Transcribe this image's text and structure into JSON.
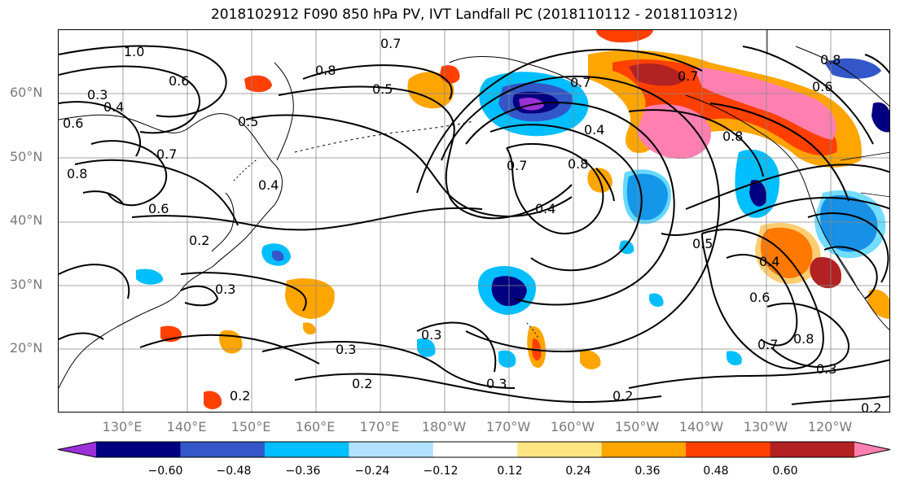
{
  "title": "2018102912 F090 850 hPa PV, IVT Landfall PC (2018110112 - 2018110312)",
  "lat_labels": [
    "60°N",
    "50°N",
    "40°N",
    "30°N",
    "20°N"
  ],
  "lon_labels": [
    "130°E",
    "140°E",
    "150°E",
    "160°E",
    "170°E",
    "180°W",
    "170°W",
    "160°W",
    "150°W",
    "140°W",
    "130°W",
    "120°W"
  ],
  "colorbar": {
    "ticks": [
      "−0.60",
      "−0.48",
      "−0.36",
      "−0.24",
      "−0.12",
      "0.12",
      "0.24",
      "0.36",
      "0.48",
      "0.60"
    ],
    "colors": [
      "#9b30d6",
      "#000080",
      "#3357c8",
      "#00bfff",
      "#b0e2ff",
      "#ffffff",
      "#ffe680",
      "#ffa500",
      "#ff4000",
      "#b22222",
      "#ff80b0"
    ]
  },
  "contour_labels": [
    "1.0",
    "0.7",
    "0.8",
    "0.6",
    "0.3",
    "0.4",
    "0.5",
    "0.6",
    "0.8",
    "0.7",
    "0.5",
    "0.6",
    "0.8",
    "0.2",
    "0.4",
    "0.3",
    "0.3",
    "0.3",
    "0.2",
    "0.3",
    "0.2",
    "0.7",
    "0.4",
    "0.8",
    "0.7",
    "0.5",
    "0.4",
    "0.6",
    "0.7",
    "0.8",
    "0.3",
    "0.2",
    "0.2",
    "0.6",
    "0.8",
    "0.7",
    "0.4"
  ]
}
